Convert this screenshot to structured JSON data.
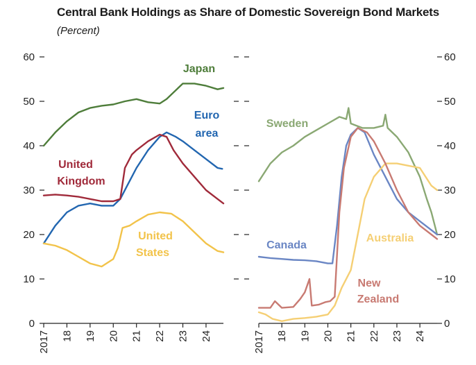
{
  "title": "Central Bank Holdings as Share of Domestic Sovereign Bond Markets",
  "subtitle": "(Percent)",
  "chart_data": [
    {
      "type": "line",
      "panel": "left",
      "ylim": [
        0,
        60
      ],
      "yticks": [
        0,
        10,
        20,
        30,
        40,
        50,
        60
      ],
      "xlim": [
        2017,
        2024.75
      ],
      "xtick_labels": [
        "2017",
        "18",
        "19",
        "20",
        "21",
        "22",
        "23",
        "24"
      ],
      "series": [
        {
          "name": "Japan",
          "color": "#4e7d3a",
          "label_lines": [
            "Japan"
          ],
          "points": [
            [
              2017.0,
              40
            ],
            [
              2017.5,
              43
            ],
            [
              2018.0,
              45.5
            ],
            [
              2018.5,
              47.5
            ],
            [
              2019.0,
              48.5
            ],
            [
              2019.5,
              49
            ],
            [
              2020.0,
              49.3
            ],
            [
              2020.5,
              50
            ],
            [
              2021.0,
              50.5
            ],
            [
              2021.5,
              49.8
            ],
            [
              2022.0,
              49.5
            ],
            [
              2022.3,
              50.5
            ],
            [
              2022.8,
              53
            ],
            [
              2023.0,
              54
            ],
            [
              2023.5,
              54
            ],
            [
              2024.0,
              53.5
            ],
            [
              2024.5,
              52.7
            ],
            [
              2024.75,
              53
            ]
          ]
        },
        {
          "name": "Euro area",
          "color": "#2266b0",
          "label_lines": [
            "Euro",
            "area"
          ],
          "points": [
            [
              2017.0,
              18
            ],
            [
              2017.5,
              22
            ],
            [
              2018.0,
              25
            ],
            [
              2018.5,
              26.5
            ],
            [
              2019.0,
              27
            ],
            [
              2019.5,
              26.5
            ],
            [
              2020.0,
              26.5
            ],
            [
              2020.3,
              28
            ],
            [
              2020.6,
              31
            ],
            [
              2021.0,
              35
            ],
            [
              2021.5,
              39
            ],
            [
              2022.0,
              42
            ],
            [
              2022.3,
              43
            ],
            [
              2022.7,
              42
            ],
            [
              2023.0,
              41
            ],
            [
              2023.5,
              39
            ],
            [
              2024.0,
              37
            ],
            [
              2024.5,
              35
            ],
            [
              2024.7,
              34.8
            ]
          ]
        },
        {
          "name": "United Kingdom",
          "color": "#a02a3a",
          "label_lines": [
            "United",
            "Kingdom"
          ],
          "points": [
            [
              2017.0,
              28.8
            ],
            [
              2017.5,
              29
            ],
            [
              2018.0,
              28.8
            ],
            [
              2018.5,
              28.5
            ],
            [
              2019.0,
              28
            ],
            [
              2019.5,
              27.5
            ],
            [
              2020.0,
              27.5
            ],
            [
              2020.3,
              28
            ],
            [
              2020.5,
              35
            ],
            [
              2020.8,
              38
            ],
            [
              2021.0,
              39
            ],
            [
              2021.5,
              41
            ],
            [
              2022.0,
              42.5
            ],
            [
              2022.3,
              42
            ],
            [
              2022.6,
              39
            ],
            [
              2023.0,
              36
            ],
            [
              2023.5,
              33
            ],
            [
              2024.0,
              30
            ],
            [
              2024.5,
              28
            ],
            [
              2024.75,
              27
            ]
          ]
        },
        {
          "name": "United States",
          "color": "#f2c34a",
          "label_lines": [
            "United",
            "States"
          ],
          "points": [
            [
              2017.0,
              18
            ],
            [
              2017.5,
              17.5
            ],
            [
              2018.0,
              16.5
            ],
            [
              2018.5,
              15
            ],
            [
              2019.0,
              13.5
            ],
            [
              2019.5,
              12.8
            ],
            [
              2020.0,
              14.5
            ],
            [
              2020.2,
              17
            ],
            [
              2020.4,
              21.5
            ],
            [
              2020.7,
              22
            ],
            [
              2021.0,
              23
            ],
            [
              2021.5,
              24.5
            ],
            [
              2022.0,
              25
            ],
            [
              2022.5,
              24.7
            ],
            [
              2023.0,
              23
            ],
            [
              2023.5,
              20.5
            ],
            [
              2024.0,
              18
            ],
            [
              2024.5,
              16.3
            ],
            [
              2024.75,
              16
            ]
          ]
        }
      ]
    },
    {
      "type": "line",
      "panel": "right",
      "ylim": [
        0,
        60
      ],
      "yticks": [
        0,
        10,
        20,
        30,
        40,
        50,
        60
      ],
      "xlim": [
        2017,
        2024.75
      ],
      "xtick_labels": [
        "2017",
        "18",
        "19",
        "20",
        "21",
        "22",
        "23",
        "24"
      ],
      "series": [
        {
          "name": "Sweden",
          "color": "#8aa873",
          "label_lines": [
            "Sweden"
          ],
          "points": [
            [
              2017.0,
              32
            ],
            [
              2017.5,
              36
            ],
            [
              2018.0,
              38.5
            ],
            [
              2018.5,
              40
            ],
            [
              2019.0,
              42
            ],
            [
              2019.5,
              43.5
            ],
            [
              2020.0,
              45
            ],
            [
              2020.5,
              46.5
            ],
            [
              2020.8,
              46
            ],
            [
              2020.9,
              48.5
            ],
            [
              2021.0,
              45
            ],
            [
              2021.5,
              44
            ],
            [
              2022.0,
              44
            ],
            [
              2022.4,
              44.5
            ],
            [
              2022.5,
              47
            ],
            [
              2022.6,
              44
            ],
            [
              2023.0,
              42
            ],
            [
              2023.5,
              38.5
            ],
            [
              2024.0,
              33
            ],
            [
              2024.3,
              28
            ],
            [
              2024.5,
              25
            ],
            [
              2024.75,
              20
            ]
          ]
        },
        {
          "name": "Canada",
          "color": "#6a86c4",
          "label_lines": [
            "Canada"
          ],
          "points": [
            [
              2017.0,
              15
            ],
            [
              2017.5,
              14.7
            ],
            [
              2018.0,
              14.5
            ],
            [
              2018.5,
              14.3
            ],
            [
              2019.0,
              14.2
            ],
            [
              2019.5,
              14
            ],
            [
              2020.0,
              13.5
            ],
            [
              2020.2,
              13.5
            ],
            [
              2020.4,
              22
            ],
            [
              2020.6,
              33
            ],
            [
              2020.8,
              40
            ],
            [
              2021.0,
              42.5
            ],
            [
              2021.3,
              44
            ],
            [
              2021.6,
              43
            ],
            [
              2022.0,
              38
            ],
            [
              2022.5,
              33
            ],
            [
              2023.0,
              28
            ],
            [
              2023.5,
              25
            ],
            [
              2024.0,
              23
            ],
            [
              2024.5,
              21
            ],
            [
              2024.75,
              20
            ]
          ]
        },
        {
          "name": "Australia",
          "color": "#f5cf74",
          "label_lines": [
            "Australia"
          ],
          "points": [
            [
              2017.0,
              2.5
            ],
            [
              2017.3,
              2
            ],
            [
              2017.6,
              1
            ],
            [
              2018.0,
              0.5
            ],
            [
              2018.5,
              1
            ],
            [
              2019.0,
              1.2
            ],
            [
              2019.5,
              1.5
            ],
            [
              2020.0,
              2
            ],
            [
              2020.3,
              4
            ],
            [
              2020.6,
              8
            ],
            [
              2021.0,
              12
            ],
            [
              2021.3,
              20
            ],
            [
              2021.6,
              28
            ],
            [
              2022.0,
              33
            ],
            [
              2022.5,
              36
            ],
            [
              2023.0,
              36
            ],
            [
              2023.5,
              35.5
            ],
            [
              2024.0,
              35
            ],
            [
              2024.5,
              31
            ],
            [
              2024.75,
              30
            ]
          ]
        },
        {
          "name": "New Zealand",
          "color": "#c87a72",
          "label_lines": [
            "New",
            "Zealand"
          ],
          "points": [
            [
              2017.0,
              3.5
            ],
            [
              2017.5,
              3.5
            ],
            [
              2017.7,
              5
            ],
            [
              2018.0,
              3.5
            ],
            [
              2018.5,
              3.7
            ],
            [
              2018.8,
              5.5
            ],
            [
              2019.0,
              7
            ],
            [
              2019.2,
              10
            ],
            [
              2019.3,
              4
            ],
            [
              2019.6,
              4.2
            ],
            [
              2019.9,
              4.8
            ],
            [
              2020.1,
              5
            ],
            [
              2020.3,
              6
            ],
            [
              2020.5,
              25
            ],
            [
              2020.7,
              35
            ],
            [
              2021.0,
              42
            ],
            [
              2021.3,
              44
            ],
            [
              2021.7,
              43
            ],
            [
              2022.0,
              41
            ],
            [
              2022.5,
              36
            ],
            [
              2023.0,
              30
            ],
            [
              2023.5,
              25
            ],
            [
              2024.0,
              22
            ],
            [
              2024.5,
              20
            ],
            [
              2024.75,
              19
            ]
          ]
        }
      ]
    }
  ]
}
